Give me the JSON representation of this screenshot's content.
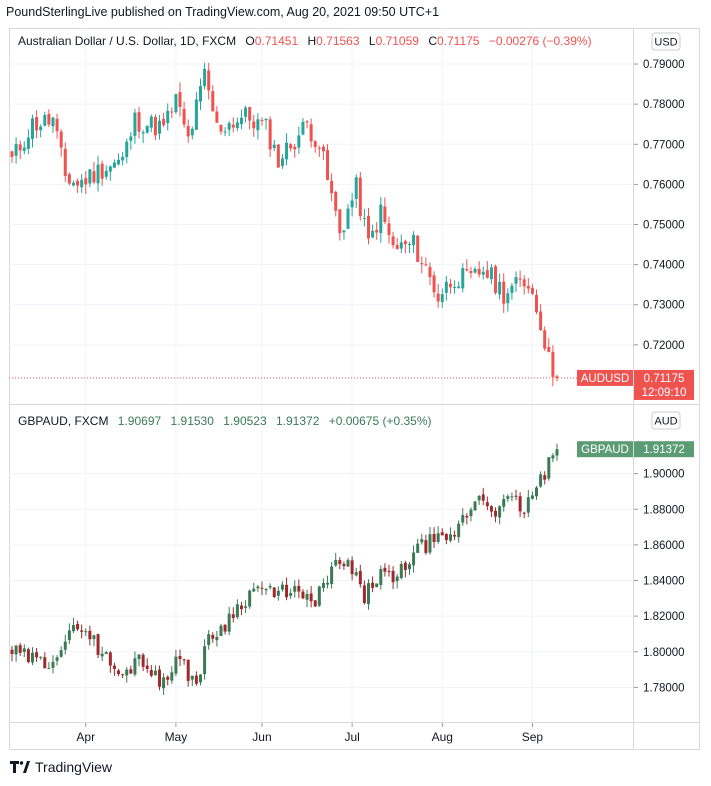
{
  "header": {
    "text": "PoundSterlingLive published on TradingView.com, Aug 20, 2021 09:50 UTC+1"
  },
  "footer": {
    "brand": "TradingView",
    "logo_icon": "tradingview-logo-icon"
  },
  "colors": {
    "up": "#26a69a",
    "down": "#ef5350",
    "up_dim": "#3b7a57",
    "down_dim": "#9e2a2b",
    "grid": "#f0f3fa",
    "axis_text": "#131722"
  },
  "chart_data": [
    {
      "type": "candlestick",
      "legend": {
        "name": "Australian Dollar / U.S. Dollar, 1D, FXCM",
        "open_label": "O",
        "open": "0.71451",
        "high_label": "H",
        "high": "0.71563",
        "low_label": "L",
        "low": "0.71059",
        "close_label": "C",
        "close": "0.71175",
        "change": "−0.00276 (−0.39%)"
      },
      "currency": "USD",
      "ylim": [
        0.7075,
        0.7935
      ],
      "yticks": [
        "0.79000",
        "0.78000",
        "0.77000",
        "0.76000",
        "0.75000",
        "0.74000",
        "0.73000",
        "0.72000"
      ],
      "last_label": "AUDUSD",
      "last_value": "0.71175",
      "countdown": "12:09:10",
      "last": 0.71175,
      "anchors": [
        [
          0,
          0.766
        ],
        [
          5,
          0.775
        ],
        [
          10,
          0.776
        ],
        [
          13,
          0.762
        ],
        [
          16,
          0.76
        ],
        [
          22,
          0.764
        ],
        [
          27,
          0.766
        ],
        [
          30,
          0.776
        ],
        [
          37,
          0.774
        ],
        [
          40,
          0.781
        ],
        [
          43,
          0.771
        ],
        [
          47,
          0.787
        ],
        [
          50,
          0.774
        ],
        [
          57,
          0.777
        ],
        [
          62,
          0.774
        ],
        [
          65,
          0.766
        ],
        [
          72,
          0.775
        ],
        [
          75,
          0.77
        ],
        [
          80,
          0.748
        ],
        [
          84,
          0.759
        ],
        [
          87,
          0.745
        ],
        [
          90,
          0.753
        ],
        [
          93,
          0.744
        ],
        [
          98,
          0.745
        ],
        [
          101,
          0.739
        ],
        [
          104,
          0.732
        ],
        [
          108,
          0.737
        ],
        [
          112,
          0.736
        ],
        [
          115,
          0.739
        ],
        [
          120,
          0.733
        ],
        [
          126,
          0.736
        ],
        [
          129,
          0.726
        ],
        [
          131,
          0.716
        ],
        [
          133,
          0.71175
        ]
      ]
    },
    {
      "type": "candlestick",
      "legend": {
        "name": "GBPAUD, FXCM",
        "open": "1.90697",
        "high": "1.91530",
        "low": "1.90523",
        "close": "1.91372",
        "change": "+0.00675 (+0.35%)"
      },
      "currency": "AUD",
      "ylim": [
        1.7645,
        1.9245
      ],
      "yticks": [
        "1.90000",
        "1.88000",
        "1.86000",
        "1.84000",
        "1.82000",
        "1.80000",
        "1.78000"
      ],
      "last_label": "GBPAUD",
      "last_value": "1.91372",
      "last": 1.91372,
      "anchors": [
        [
          0,
          1.8
        ],
        [
          8,
          1.793
        ],
        [
          12,
          1.803
        ],
        [
          17,
          1.816
        ],
        [
          22,
          1.799
        ],
        [
          27,
          1.785
        ],
        [
          31,
          1.799
        ],
        [
          36,
          1.782
        ],
        [
          40,
          1.796
        ],
        [
          45,
          1.783
        ],
        [
          48,
          1.807
        ],
        [
          52,
          1.816
        ],
        [
          56,
          1.828
        ],
        [
          60,
          1.837
        ],
        [
          64,
          1.831
        ],
        [
          68,
          1.836
        ],
        [
          73,
          1.826
        ],
        [
          76,
          1.837
        ],
        [
          79,
          1.848
        ],
        [
          82,
          1.849
        ],
        [
          86,
          1.831
        ],
        [
          90,
          1.845
        ],
        [
          93,
          1.838
        ],
        [
          98,
          1.856
        ],
        [
          103,
          1.863
        ],
        [
          106,
          1.86
        ],
        [
          110,
          1.874
        ],
        [
          114,
          1.888
        ],
        [
          118,
          1.88
        ],
        [
          122,
          1.885
        ],
        [
          125,
          1.88
        ],
        [
          129,
          1.896
        ],
        [
          133,
          1.91372
        ]
      ]
    }
  ],
  "x_axis": {
    "months": [
      {
        "label": "Apr",
        "index": 18
      },
      {
        "label": "May",
        "index": 40
      },
      {
        "label": "Jun",
        "index": 61
      },
      {
        "label": "Jul",
        "index": 83
      },
      {
        "label": "Aug",
        "index": 105
      },
      {
        "label": "Sep",
        "index": 127
      }
    ]
  }
}
